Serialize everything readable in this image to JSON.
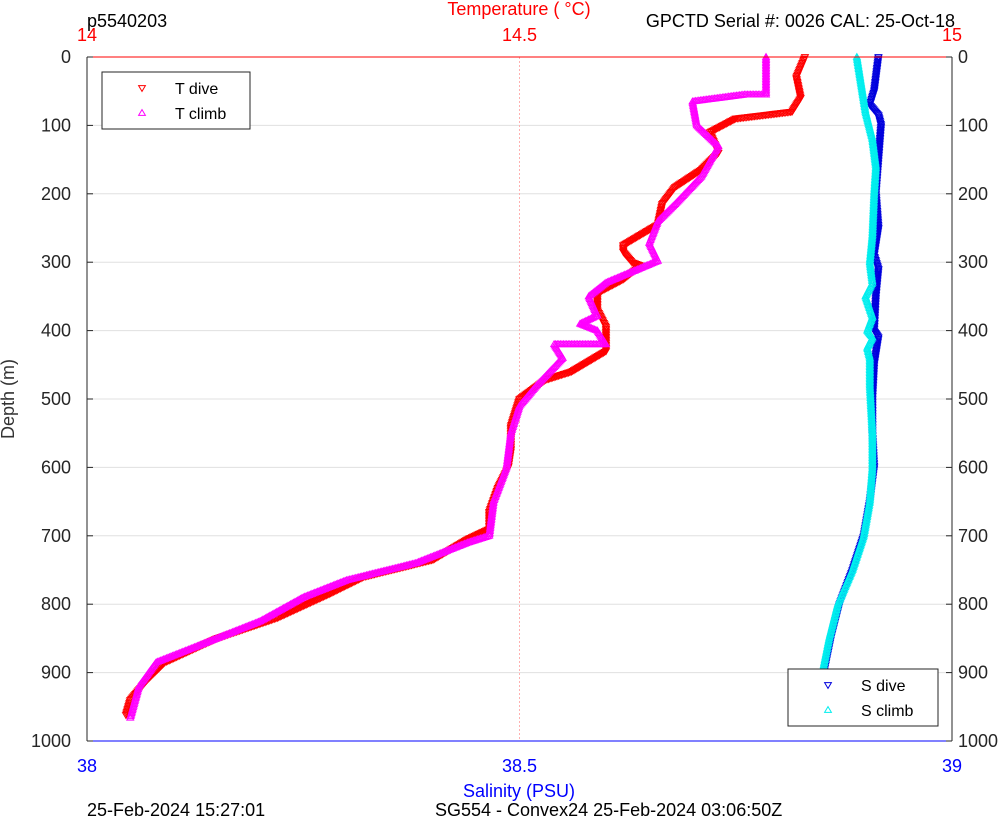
{
  "header": {
    "profile_id": "p5540203",
    "serial_info": "GPCTD Serial #: 0026 CAL: 25-Oct-18"
  },
  "footer": {
    "plot_time": "25-Feb-2024 15:27:01",
    "mission": "SG554 - Convex24 25-Feb-2024 03:06:50Z"
  },
  "colors": {
    "temperature_axis": "#ff0000",
    "salinity_axis": "#0000ff",
    "t_dive": "#ff0000",
    "t_climb": "#ff00ff",
    "s_dive": "#0000dd",
    "s_climb": "#00eeee",
    "grid": "#e0e0e0"
  },
  "chart_data": {
    "type": "scatter",
    "ylabel": "Depth (m)",
    "ylim": [
      1000,
      0
    ],
    "y_reversed": true,
    "y_ticks": [
      "0",
      "100",
      "200",
      "300",
      "400",
      "500",
      "600",
      "700",
      "800",
      "900",
      "1000"
    ],
    "top_axis": {
      "label": "Temperature (    °C)",
      "range": [
        14,
        15
      ],
      "ticks": [
        "14",
        "14.5",
        "15"
      ]
    },
    "bottom_axis": {
      "label": "Salinity (PSU)",
      "range": [
        38,
        39
      ],
      "ticks": [
        "38",
        "38.5",
        "39"
      ]
    },
    "grid": true,
    "legends": [
      {
        "placement": "top-left",
        "entries": [
          "T dive",
          "T climb"
        ]
      },
      {
        "placement": "bottom-right",
        "entries": [
          "S dive",
          "S climb"
        ]
      }
    ],
    "series": [
      {
        "name": "T dive",
        "axis": "temperature",
        "marker": "triangle-down",
        "points": [
          [
            14.83,
            0
          ],
          [
            14.82,
            30
          ],
          [
            14.825,
            60
          ],
          [
            14.815,
            80
          ],
          [
            14.75,
            90
          ],
          [
            14.72,
            110
          ],
          [
            14.73,
            140
          ],
          [
            14.71,
            165
          ],
          [
            14.68,
            190
          ],
          [
            14.665,
            215
          ],
          [
            14.66,
            245
          ],
          [
            14.62,
            275
          ],
          [
            14.62,
            285
          ],
          [
            14.63,
            300
          ],
          [
            14.64,
            305
          ],
          [
            14.62,
            325
          ],
          [
            14.59,
            345
          ],
          [
            14.59,
            370
          ],
          [
            14.6,
            395
          ],
          [
            14.6,
            430
          ],
          [
            14.56,
            460
          ],
          [
            14.53,
            472
          ],
          [
            14.5,
            500
          ],
          [
            14.49,
            540
          ],
          [
            14.49,
            575
          ],
          [
            14.487,
            600
          ],
          [
            14.475,
            630
          ],
          [
            14.465,
            665
          ],
          [
            14.465,
            690
          ],
          [
            14.44,
            705
          ],
          [
            14.4,
            735
          ],
          [
            14.32,
            760
          ],
          [
            14.28,
            785
          ],
          [
            14.22,
            820
          ],
          [
            14.15,
            850
          ],
          [
            14.09,
            885
          ],
          [
            14.07,
            910
          ],
          [
            14.05,
            940
          ],
          [
            14.045,
            962
          ]
        ]
      },
      {
        "name": "T climb",
        "axis": "temperature",
        "marker": "triangle-up",
        "points": [
          [
            14.785,
            0
          ],
          [
            14.785,
            55
          ],
          [
            14.76,
            55
          ],
          [
            14.7,
            65
          ],
          [
            14.705,
            100
          ],
          [
            14.73,
            130
          ],
          [
            14.71,
            175
          ],
          [
            14.68,
            215
          ],
          [
            14.66,
            240
          ],
          [
            14.65,
            272
          ],
          [
            14.66,
            298
          ],
          [
            14.6,
            330
          ],
          [
            14.58,
            350
          ],
          [
            14.59,
            378
          ],
          [
            14.57,
            390
          ],
          [
            14.59,
            400
          ],
          [
            14.6,
            420
          ],
          [
            14.54,
            420
          ],
          [
            14.55,
            440
          ],
          [
            14.52,
            480
          ],
          [
            14.5,
            510
          ],
          [
            14.49,
            550
          ],
          [
            14.485,
            600
          ],
          [
            14.47,
            650
          ],
          [
            14.465,
            700
          ],
          [
            14.44,
            710
          ],
          [
            14.38,
            740
          ],
          [
            14.3,
            765
          ],
          [
            14.25,
            790
          ],
          [
            14.2,
            825
          ],
          [
            14.15,
            850
          ],
          [
            14.08,
            885
          ],
          [
            14.06,
            920
          ],
          [
            14.05,
            966
          ]
        ]
      },
      {
        "name": "S dive",
        "axis": "salinity",
        "marker": "triangle-down",
        "points": [
          [
            38.915,
            0
          ],
          [
            38.91,
            50
          ],
          [
            38.905,
            70
          ],
          [
            38.915,
            85
          ],
          [
            38.918,
            100
          ],
          [
            38.915,
            150
          ],
          [
            38.912,
            200
          ],
          [
            38.915,
            250
          ],
          [
            38.91,
            290
          ],
          [
            38.915,
            310
          ],
          [
            38.912,
            350
          ],
          [
            38.91,
            400
          ],
          [
            38.915,
            410
          ],
          [
            38.91,
            450
          ],
          [
            38.908,
            500
          ],
          [
            38.908,
            550
          ],
          [
            38.91,
            600
          ],
          [
            38.905,
            650
          ],
          [
            38.898,
            700
          ],
          [
            38.885,
            750
          ],
          [
            38.87,
            800
          ],
          [
            38.86,
            850
          ],
          [
            38.852,
            900
          ],
          [
            38.848,
            966
          ]
        ]
      },
      {
        "name": "S climb",
        "axis": "salinity",
        "marker": "triangle-up",
        "points": [
          [
            38.89,
            0
          ],
          [
            38.895,
            40
          ],
          [
            38.9,
            80
          ],
          [
            38.908,
            120
          ],
          [
            38.912,
            160
          ],
          [
            38.91,
            200
          ],
          [
            38.908,
            260
          ],
          [
            38.905,
            300
          ],
          [
            38.908,
            330
          ],
          [
            38.9,
            350
          ],
          [
            38.908,
            380
          ],
          [
            38.902,
            400
          ],
          [
            38.908,
            410
          ],
          [
            38.902,
            425
          ],
          [
            38.905,
            440
          ],
          [
            38.905,
            480
          ],
          [
            38.908,
            550
          ],
          [
            38.908,
            600
          ],
          [
            38.905,
            650
          ],
          [
            38.898,
            700
          ],
          [
            38.885,
            750
          ],
          [
            38.868,
            800
          ],
          [
            38.858,
            850
          ],
          [
            38.85,
            900
          ],
          [
            38.848,
            966
          ]
        ]
      }
    ]
  }
}
